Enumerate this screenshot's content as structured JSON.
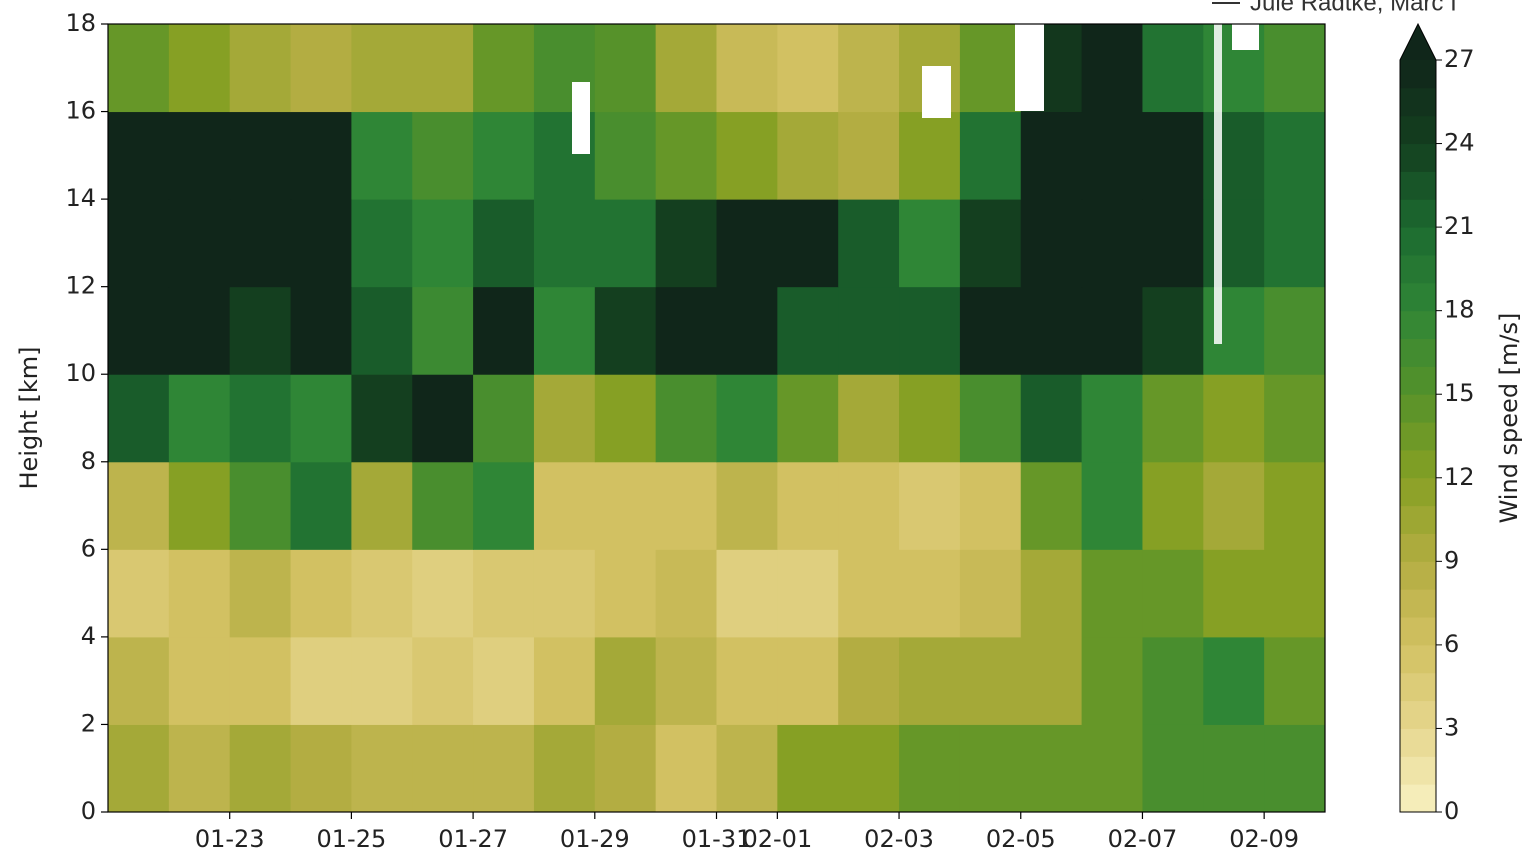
{
  "chart_data": {
    "type": "heatmap",
    "xlabel": null,
    "ylabel": "Height [km]",
    "annotation": "Jule Radtke, Marc I",
    "x": [
      "01-21",
      "01-22",
      "01-23",
      "01-24",
      "01-25",
      "01-26",
      "01-27",
      "01-28",
      "01-29",
      "01-30",
      "01-31",
      "02-01",
      "02-02",
      "02-03",
      "02-04",
      "02-05",
      "02-06",
      "02-07",
      "02-08",
      "02-09"
    ],
    "xlim": [
      "01-21",
      "02-10"
    ],
    "xticks": [
      "01-23",
      "01-25",
      "01-27",
      "01-29",
      "01-31",
      "02-01",
      "02-03",
      "02-05",
      "02-07",
      "02-09"
    ],
    "y": [
      0,
      2,
      4,
      6,
      8,
      10,
      12,
      14,
      16,
      18
    ],
    "ylim": [
      0,
      18
    ],
    "yticks": [
      0,
      2,
      4,
      6,
      8,
      10,
      12,
      14,
      16,
      18
    ],
    "z": [
      [
        10,
        8,
        10,
        9,
        8,
        8,
        8,
        10,
        9,
        6,
        8,
        12,
        12,
        14,
        14,
        14,
        14,
        16,
        16,
        16
      ],
      [
        8,
        6,
        6,
        4,
        4,
        5,
        4,
        6,
        10,
        8,
        6,
        6,
        9,
        10,
        10,
        10,
        14,
        16,
        18,
        14
      ],
      [
        5,
        6,
        8,
        6,
        5,
        4,
        5,
        5,
        6,
        7,
        4,
        4,
        6,
        6,
        7,
        10,
        14,
        14,
        12,
        12
      ],
      [
        8,
        12,
        16,
        20,
        10,
        16,
        18,
        6,
        6,
        6,
        8,
        6,
        6,
        5,
        6,
        14,
        18,
        12,
        10,
        12
      ],
      [
        22,
        18,
        20,
        18,
        24,
        27,
        16,
        10,
        12,
        16,
        18,
        14,
        10,
        12,
        16,
        22,
        18,
        14,
        12,
        14
      ],
      [
        27,
        27,
        24,
        27,
        22,
        17,
        27,
        18,
        24,
        27,
        27,
        22,
        22,
        22,
        27,
        27,
        27,
        24,
        18,
        16
      ],
      [
        27,
        27,
        27,
        27,
        20,
        18,
        22,
        20,
        20,
        24,
        27,
        27,
        22,
        18,
        24,
        27,
        27,
        27,
        22,
        20
      ],
      [
        27,
        27,
        27,
        27,
        18,
        16,
        18,
        20,
        16,
        14,
        12,
        10,
        9,
        12,
        20,
        27,
        27,
        27,
        22,
        20
      ],
      [
        14,
        12,
        10,
        9,
        10,
        10,
        14,
        16,
        15,
        10,
        7,
        6,
        8,
        10,
        14,
        25,
        27,
        20,
        18,
        16
      ]
    ],
    "colorbar": {
      "label": "Wind speed [m/s]",
      "clim": [
        0,
        27
      ],
      "ticks": [
        0,
        3,
        6,
        9,
        12,
        15,
        18,
        21,
        24,
        27
      ],
      "extend": "max",
      "colormap": [
        "#f8f1c2",
        "#e6d68e",
        "#d2c162",
        "#b3ad42",
        "#86a024",
        "#56922a",
        "#2f8636",
        "#1c6a30",
        "#143f1f",
        "#10261a"
      ]
    }
  }
}
